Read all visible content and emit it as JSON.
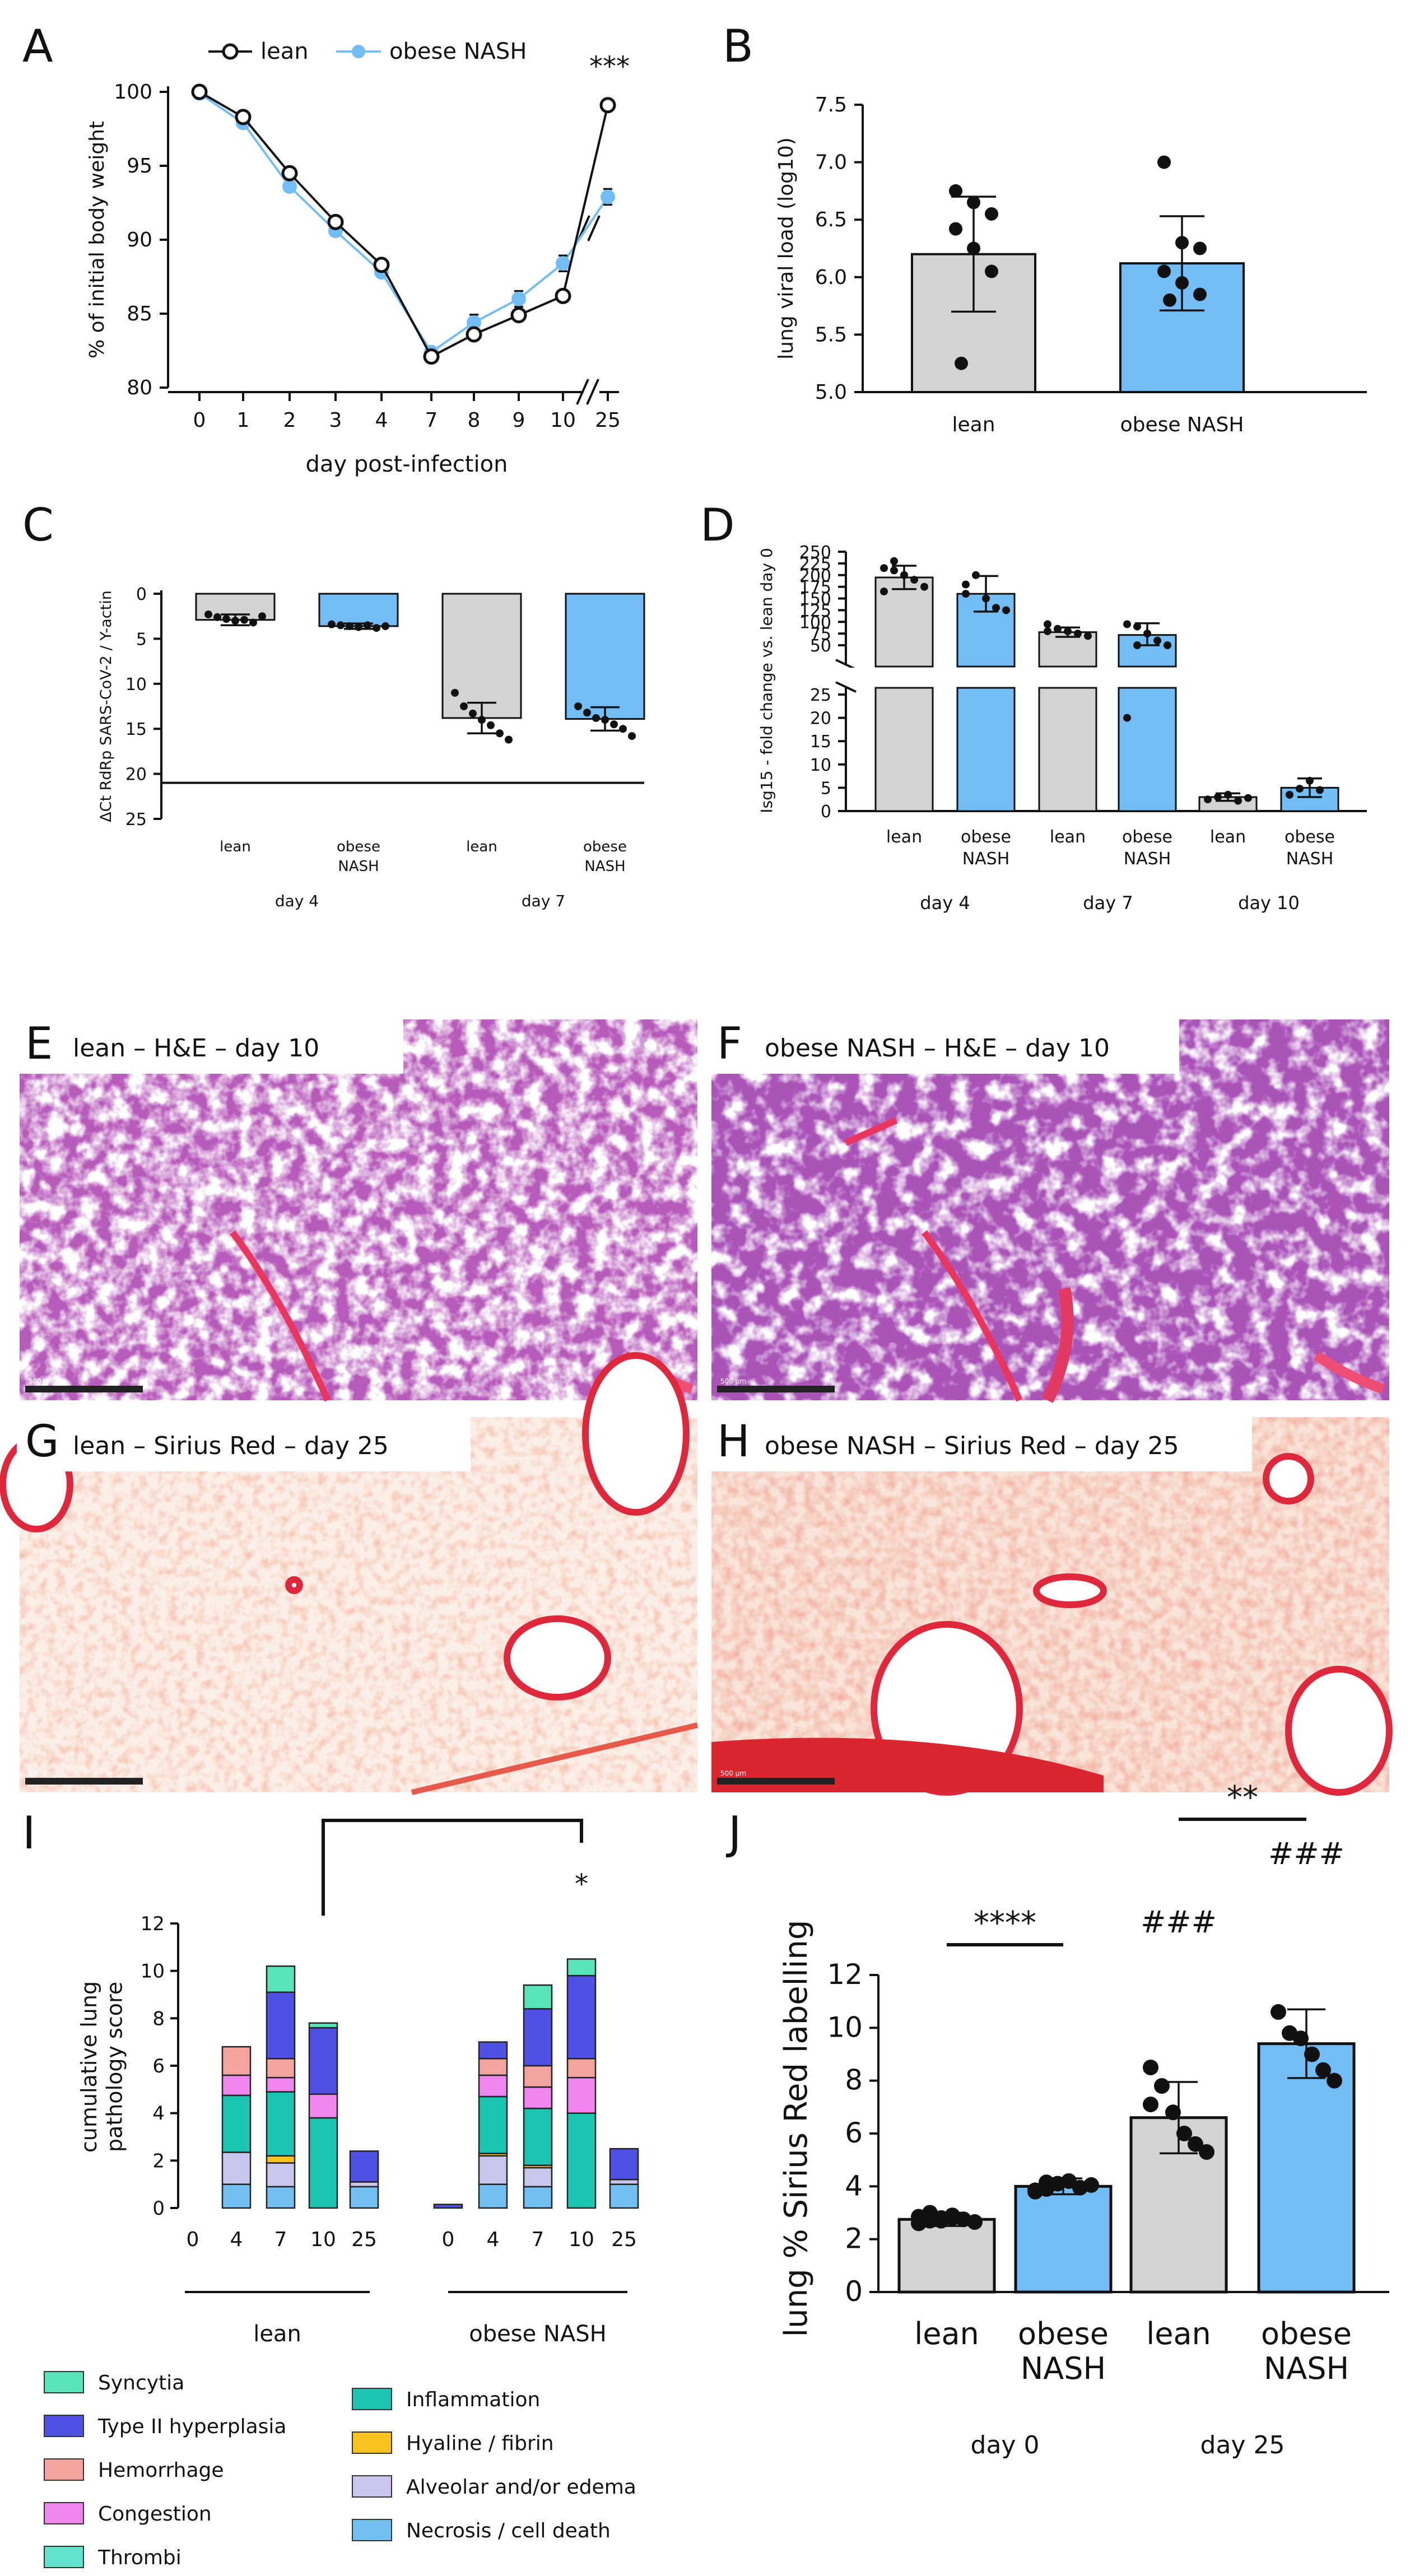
{
  "colors": {
    "lean": "#d3d3d3",
    "obese": "#73bdf7",
    "black": "#111111",
    "syncytia": "#58e4b8",
    "type2": "#5050e6",
    "hemorrhage": "#f4a39e",
    "congestion": "#ef86ee",
    "thrombi": "#62e3cc",
    "inflammation": "#1cc4b1",
    "hyaline": "#f6c21b",
    "alveolar": "#c9c6ee",
    "necrosis": "#72bff2"
  },
  "chart_data": [
    {
      "panel": "A",
      "type": "line",
      "ylabel": "% of initial body weight",
      "xlabel": "day post-infection",
      "x": [
        "0",
        "1",
        "2",
        "3",
        "4",
        "7",
        "8",
        "9",
        "10",
        "25"
      ],
      "ylim": [
        80,
        100
      ],
      "yticks": [
        "80",
        "85",
        "90",
        "95",
        "100"
      ],
      "series": [
        {
          "name": "lean",
          "values": [
            100,
            98.3,
            94.5,
            91.2,
            88.3,
            82.1,
            83.6,
            84.9,
            86.2,
            99.1
          ]
        },
        {
          "name": "obese NASH",
          "values": [
            99.9,
            97.9,
            93.6,
            90.6,
            87.8,
            82.4,
            84.4,
            86.0,
            88.4,
            92.9
          ]
        }
      ],
      "annotation": "***"
    },
    {
      "panel": "B",
      "type": "bar",
      "ylabel": "lung viral load (log10)",
      "categories": [
        "lean",
        "obese NASH"
      ],
      "values": [
        6.2,
        6.12
      ],
      "errors": [
        0.5,
        0.41
      ],
      "ylim": [
        5.0,
        7.5
      ],
      "yticks": [
        "5.0",
        "5.5",
        "6.0",
        "6.5",
        "7.0",
        "7.5"
      ],
      "points": [
        [
          6.75,
          6.65,
          6.55,
          6.42,
          6.25,
          6.05,
          5.25
        ],
        [
          7.0,
          6.3,
          6.25,
          6.05,
          5.95,
          5.85,
          5.8
        ]
      ]
    },
    {
      "panel": "C",
      "type": "bar",
      "ylabel": "ΔCt RdRp SARS-CoV-2 / Y-actin",
      "categories": [
        "lean",
        "obese\nNASH",
        "lean",
        "obese\nNASH"
      ],
      "groups": [
        "day 4",
        "day 7"
      ],
      "values": [
        2.9,
        3.6,
        13.8,
        13.9
      ],
      "errors": [
        0.6,
        0.3,
        1.7,
        1.3
      ],
      "ylim": [
        0,
        25
      ],
      "yticks": [
        "0",
        "5",
        "10",
        "15",
        "20",
        "25"
      ],
      "inverted": true
    },
    {
      "panel": "D",
      "type": "bar",
      "ylabel": "Isg15 - fold change vs. lean day 0",
      "categories": [
        "lean",
        "obese\nNASH",
        "lean",
        "obese\nNASH",
        "lean",
        "obese\nNASH"
      ],
      "groups": [
        "day 4",
        "day 7",
        "day 10"
      ],
      "values": [
        195,
        160,
        78,
        72,
        3,
        5
      ],
      "errors": [
        25,
        38,
        10,
        25,
        0.8,
        2
      ],
      "yticks": [
        "0",
        "5",
        "10",
        "15",
        "20",
        "25",
        "50",
        "75",
        "100",
        "125",
        "150",
        "175",
        "200",
        "225",
        "250"
      ]
    },
    {
      "panel": "I",
      "type": "bar",
      "stacked": true,
      "ylabel": "cumulative lung\npathology score",
      "x": [
        "0",
        "4",
        "7",
        "10",
        "25",
        "0",
        "4",
        "7",
        "10",
        "25"
      ],
      "groups": [
        "lean",
        "obese NASH"
      ],
      "ylim": [
        0,
        12
      ],
      "yticks": [
        "0",
        "2",
        "4",
        "6",
        "8",
        "10",
        "12"
      ],
      "totals": [
        0,
        6.8,
        10.2,
        7.8,
        2.4,
        0.15,
        7.0,
        9.4,
        10.5,
        2.5
      ],
      "annotation": "*",
      "legend": [
        "Syncytia",
        "Type II hyperplasia",
        "Hemorrhage",
        "Congestion",
        "Thrombi",
        "Inflammation",
        "Hyaline / fibrin",
        "Alveolar and/or edema",
        "Necrosis / cell death"
      ]
    },
    {
      "panel": "J",
      "type": "bar",
      "ylabel": "lung % Sirius  Red labelling",
      "categories": [
        "lean",
        "obese\nNASH",
        "lean",
        "obese\nNASH"
      ],
      "groups": [
        "day 0",
        "day 25"
      ],
      "values": [
        2.75,
        4.0,
        6.6,
        9.4
      ],
      "errors": [
        0.25,
        0.3,
        1.35,
        1.3
      ],
      "ylim": [
        0,
        12
      ],
      "yticks": [
        "0",
        "2",
        "4",
        "6",
        "8",
        "10",
        "12"
      ],
      "annotations": [
        "****",
        "**",
        "###",
        "###"
      ]
    }
  ],
  "histology": [
    {
      "panel": "E",
      "label": "lean – H&E – day 10",
      "scale": "500 µm"
    },
    {
      "panel": "F",
      "label": "obese NASH – H&E – day 10",
      "scale": "500 µm"
    },
    {
      "panel": "G",
      "label": "lean – Sirius Red – day 25",
      "scale": "500 µm"
    },
    {
      "panel": "H",
      "label": "obese NASH – Sirius Red – day 25",
      "scale": "500 µm"
    }
  ]
}
